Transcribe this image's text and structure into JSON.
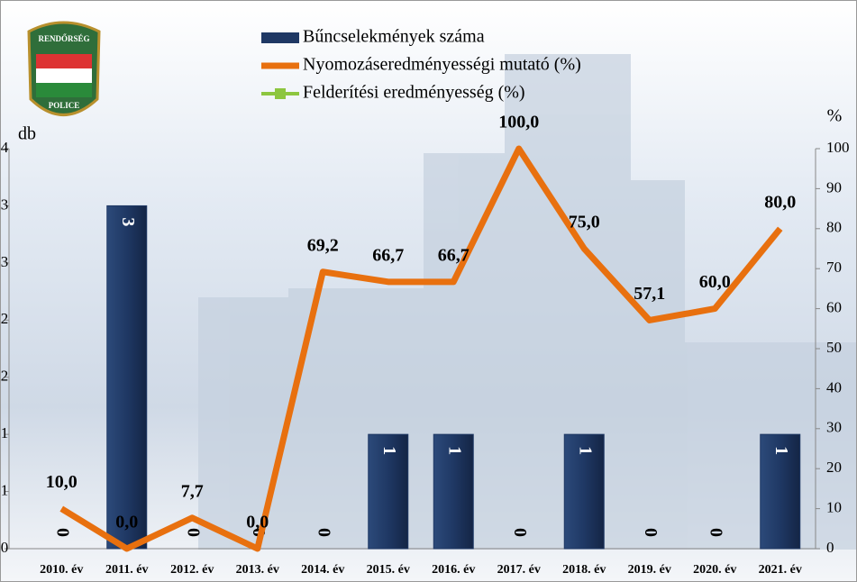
{
  "logo": {
    "top": "RENDŐRSÉG",
    "bottom": "POLICE"
  },
  "chart_data": {
    "type": "bar-line",
    "ylabel": "db",
    "y2label": "%",
    "categories": [
      "2010. év",
      "2011. év",
      "2012. év",
      "2013. év",
      "2014. év",
      "2015. év",
      "2016. év",
      "2017. év",
      "2018. év",
      "2019. év",
      "2020. év",
      "2021. év"
    ],
    "ylim": [
      0,
      3.5
    ],
    "yticks": [
      0,
      {
        "value": 0.5,
        "label": "1"
      },
      {
        "value": 1,
        "label": "1"
      },
      {
        "value": 1.5,
        "label": "2"
      },
      {
        "value": 2,
        "label": "2"
      },
      {
        "value": 2.5,
        "label": "3"
      },
      {
        "value": 3,
        "label": "3"
      },
      {
        "value": 3.5,
        "label": "4"
      }
    ],
    "y2lim": [
      0,
      100
    ],
    "y2ticks": [
      0,
      10,
      20,
      30,
      40,
      50,
      60,
      70,
      80,
      90,
      100
    ],
    "series": [
      {
        "name": "Bűncselekmények száma",
        "kind": "bar",
        "color": "#1f3864",
        "values": [
          0,
          3,
          0,
          0,
          0,
          1,
          1,
          0,
          1,
          0,
          0,
          1
        ]
      },
      {
        "name": "Nyomozáseredményességi mutató (%)",
        "kind": "line",
        "axis": "y2",
        "color": "#e8700f",
        "values": [
          10.0,
          0.0,
          7.7,
          0.0,
          69.2,
          66.7,
          66.7,
          100.0,
          75.0,
          57.1,
          60.0,
          80.0
        ],
        "value_labels": [
          "10,0",
          "0,0",
          "7,7",
          "0,0",
          "69,2",
          "66,7",
          "66,7",
          "100,0",
          "75,0",
          "57,1",
          "60,0",
          "80,0"
        ]
      },
      {
        "name": "Felderítési eredményesség (%)",
        "kind": "line",
        "axis": "y2",
        "color": "#8dc63f",
        "values": [
          null,
          null,
          null,
          null,
          null,
          null,
          null,
          null,
          null,
          null,
          null,
          null
        ]
      }
    ]
  }
}
